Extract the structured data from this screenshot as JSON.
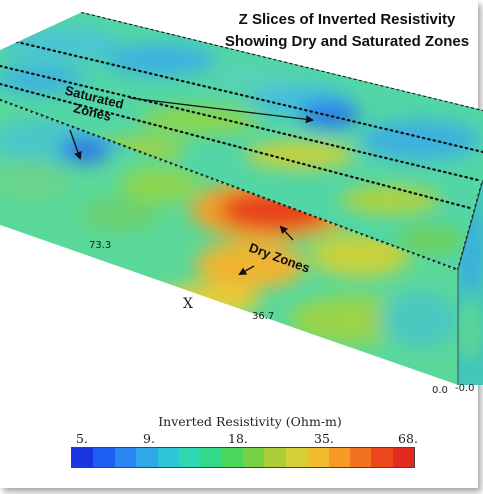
{
  "title": {
    "line1": "Z Slices of Inverted Resistivity",
    "line2": "Showing Dry and Saturated Zones"
  },
  "annotations": {
    "saturated": "Saturated Zones",
    "dry": "Dry Zones"
  },
  "axes": {
    "x_label": "X",
    "tick_73": "73.3",
    "tick_36": "36.7",
    "tick_0a": "0.0",
    "tick_0b": "-0.0"
  },
  "colorbar": {
    "title": "Inverted Resistivity (Ohm-m)",
    "ticks": [
      "5.",
      "9.",
      "18.",
      "35.",
      "68."
    ],
    "colors": [
      "#1a35e0",
      "#1e5ef0",
      "#2a86f2",
      "#2ea8e8",
      "#2fc6d8",
      "#2fd6b2",
      "#33d98a",
      "#4cd65b",
      "#77d043",
      "#a9ce3a",
      "#d6cf38",
      "#f0bd2e",
      "#f59b26",
      "#f2731f",
      "#ec4a1c",
      "#e22a20"
    ]
  }
}
